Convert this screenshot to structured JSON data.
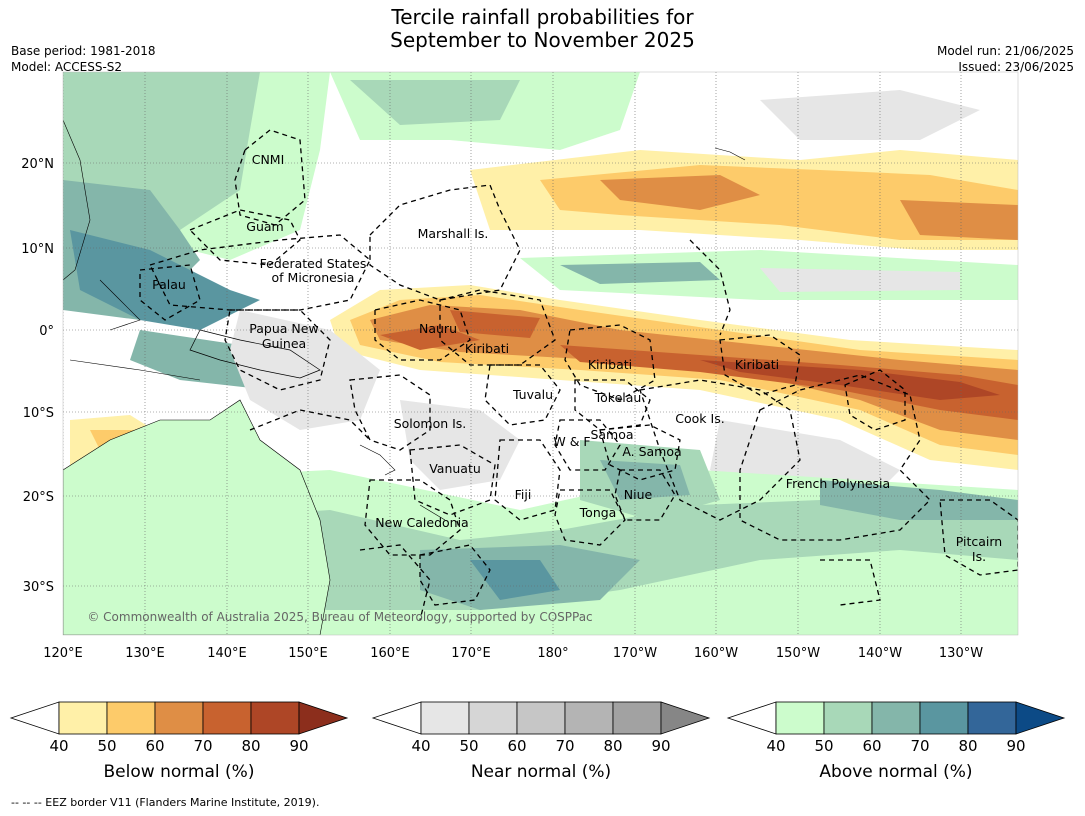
{
  "header": {
    "title_line1": "Tercile rainfall probabilities for",
    "title_line2": "September to November 2025",
    "base_period": "Base period: 1981-2018",
    "model": "Model: ACCESS-S2",
    "model_run": "Model run: 21/06/2025",
    "issued": "Issued: 23/06/2025"
  },
  "map": {
    "lat_labels": [
      "20°N",
      "10°N",
      "0°",
      "10°S",
      "20°S",
      "30°S"
    ],
    "lon_labels": [
      "120°E",
      "130°E",
      "140°E",
      "150°E",
      "160°E",
      "170°E",
      "180°",
      "170°W",
      "160°W",
      "150°W",
      "140°W",
      "130°W"
    ],
    "regions": [
      "CNMI",
      "Guam",
      "Marshall Is.",
      "Federated States",
      "of Micronesia",
      "Palau",
      "Papua New",
      "Guinea",
      "Nauru",
      "Kiribati",
      "Kiribati",
      "Kiribati",
      "Tuvalu",
      "Tokelau",
      "Solomon Is.",
      "Samoa",
      "W & F",
      "A. Samoa",
      "Cook Is.",
      "Vanuatu",
      "Fiji",
      "Niue",
      "Tonga",
      "French Polynesia",
      "New Caledonia",
      "Pitcairn",
      "Is."
    ],
    "copyright": "© Commonwealth of Australia 2025, Bureau of Meteorology, supported by COSPPac"
  },
  "colorbars": [
    {
      "label": "Below normal (%)",
      "ticks": [
        "40",
        "50",
        "60",
        "70",
        "80",
        "90"
      ],
      "colors": [
        "#fff0a8",
        "#fdcb6a",
        "#df8e45",
        "#c8622f",
        "#ae4626",
        "#8c2e1c"
      ]
    },
    {
      "label": "Near normal (%)",
      "ticks": [
        "40",
        "50",
        "60",
        "70",
        "80",
        "90"
      ],
      "colors": [
        "#e6e6e6",
        "#d6d6d6",
        "#c6c6c6",
        "#b4b4b4",
        "#a2a2a2",
        "#868686"
      ]
    },
    {
      "label": "Above normal (%)",
      "ticks": [
        "40",
        "50",
        "60",
        "70",
        "80",
        "90"
      ],
      "colors": [
        "#ccfccc",
        "#a8d8b8",
        "#84b6aa",
        "#5a96a0",
        "#336699",
        "#0c4a86"
      ]
    }
  ],
  "footer": "--  --  -- EEZ border V11 (Flanders Marine Institute, 2019)."
}
